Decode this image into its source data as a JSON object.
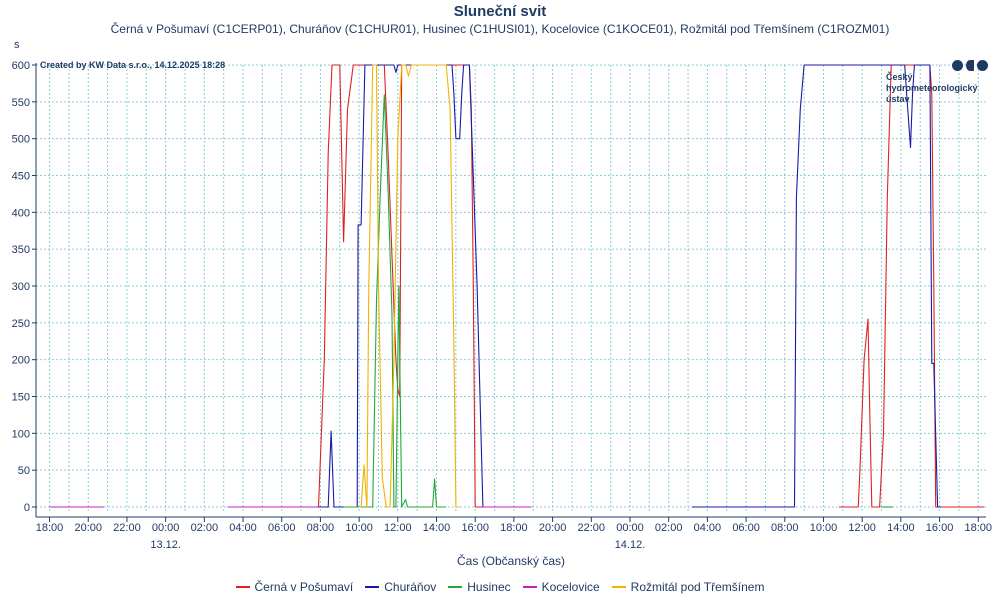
{
  "chart_data": {
    "type": "line",
    "title": "Sluneční svit",
    "subtitle": "Černá v Pošumaví (C1CERP01), Churáňov (C1CHUR01), Husinec (C1HUSI01), Kocelovice (C1KOCE01), Rožmitál pod Třemšínem (C1ROZM01)",
    "ylabel": "s",
    "xlabel": "Čas (Občanský čas)",
    "ylim": [
      0,
      600
    ],
    "y_ticks": [
      0,
      50,
      100,
      150,
      200,
      250,
      300,
      350,
      400,
      450,
      500,
      550,
      600
    ],
    "xlim": [
      17.3,
      66.4
    ],
    "x_ticks": [
      {
        "x": 18,
        "label": "18:00"
      },
      {
        "x": 20,
        "label": "20:00"
      },
      {
        "x": 22,
        "label": "22:00"
      },
      {
        "x": 24,
        "label": "00:00"
      },
      {
        "x": 26,
        "label": "02:00"
      },
      {
        "x": 28,
        "label": "04:00"
      },
      {
        "x": 30,
        "label": "06:00"
      },
      {
        "x": 32,
        "label": "08:00"
      },
      {
        "x": 34,
        "label": "10:00"
      },
      {
        "x": 36,
        "label": "12:00"
      },
      {
        "x": 38,
        "label": "14:00"
      },
      {
        "x": 40,
        "label": "16:00"
      },
      {
        "x": 42,
        "label": "18:00"
      },
      {
        "x": 44,
        "label": "20:00"
      },
      {
        "x": 46,
        "label": "22:00"
      },
      {
        "x": 48,
        "label": "00:00"
      },
      {
        "x": 50,
        "label": "02:00"
      },
      {
        "x": 52,
        "label": "04:00"
      },
      {
        "x": 54,
        "label": "06:00"
      },
      {
        "x": 56,
        "label": "08:00"
      },
      {
        "x": 58,
        "label": "10:00"
      },
      {
        "x": 60,
        "label": "12:00"
      },
      {
        "x": 62,
        "label": "14:00"
      },
      {
        "x": 64,
        "label": "16:00"
      },
      {
        "x": 66,
        "label": "18:00"
      }
    ],
    "date_labels": [
      {
        "x": 24,
        "label": "13.12."
      },
      {
        "x": 48,
        "label": "14.12."
      }
    ],
    "grid": true,
    "legend_position": "bottom",
    "series": [
      {
        "name": "Černá v Pošumaví",
        "color": "#dd2222",
        "segments": [
          [
            [
              18,
              0
            ],
            [
              20.8,
              0
            ]
          ],
          [
            [
              27.2,
              0
            ],
            [
              31.9,
              0
            ],
            [
              32.2,
              200
            ],
            [
              32.4,
              480
            ],
            [
              32.6,
              600
            ],
            [
              33.0,
              600
            ],
            [
              33.2,
              360
            ],
            [
              33.4,
              540
            ],
            [
              33.7,
              600
            ],
            [
              35.3,
              600
            ],
            [
              35.5,
              480
            ],
            [
              35.7,
              340
            ],
            [
              35.9,
              200
            ],
            [
              36.0,
              160
            ],
            [
              36.1,
              150
            ],
            [
              36.2,
              600
            ],
            [
              39.7,
              600
            ],
            [
              39.8,
              540
            ],
            [
              39.9,
              300
            ],
            [
              40.0,
              0
            ],
            [
              40.3,
              0
            ]
          ],
          [
            [
              40.3,
              0
            ],
            [
              42.9,
              0
            ]
          ],
          [
            [
              58.8,
              0
            ],
            [
              59.8,
              0
            ],
            [
              59.9,
              60
            ],
            [
              60.1,
              200
            ],
            [
              60.3,
              255
            ],
            [
              60.4,
              120
            ],
            [
              60.5,
              0
            ],
            [
              60.9,
              0
            ],
            [
              61.1,
              100
            ],
            [
              61.3,
              420
            ],
            [
              61.5,
              600
            ],
            [
              63.5,
              600
            ],
            [
              63.6,
              560
            ],
            [
              63.7,
              300
            ],
            [
              63.8,
              0
            ],
            [
              66.3,
              0
            ]
          ]
        ]
      },
      {
        "name": "Churáňov",
        "color": "#1a1aa8",
        "segments": [
          [
            [
              27.2,
              0
            ],
            [
              32.4,
              0
            ],
            [
              32.55,
              103
            ],
            [
              32.7,
              0
            ],
            [
              33.9,
              0
            ],
            [
              33.95,
              383
            ],
            [
              34.1,
              383
            ],
            [
              34.3,
              600
            ],
            [
              35.8,
              600
            ],
            [
              35.9,
              590
            ],
            [
              36.0,
              600
            ],
            [
              38.8,
              600
            ],
            [
              38.9,
              560
            ],
            [
              39.0,
              500
            ],
            [
              39.2,
              500
            ],
            [
              39.3,
              560
            ],
            [
              39.4,
              600
            ],
            [
              39.7,
              600
            ],
            [
              40.1,
              300
            ],
            [
              40.4,
              0
            ],
            [
              40.9,
              0
            ]
          ],
          [
            [
              51.2,
              0
            ],
            [
              56.5,
              0
            ],
            [
              56.6,
              420
            ],
            [
              56.8,
              540
            ],
            [
              57.0,
              600
            ],
            [
              62.2,
              600
            ],
            [
              62.3,
              560
            ],
            [
              62.5,
              488
            ],
            [
              62.6,
              560
            ],
            [
              62.7,
              600
            ],
            [
              63.5,
              600
            ],
            [
              63.6,
              195
            ],
            [
              63.7,
              195
            ],
            [
              63.9,
              0
            ],
            [
              64.1,
              0
            ]
          ]
        ]
      },
      {
        "name": "Husinec",
        "color": "#22a83a",
        "segments": [
          [
            [
              33.2,
              0
            ],
            [
              34.7,
              0
            ],
            [
              34.9,
              280
            ],
            [
              35.1,
              430
            ],
            [
              35.3,
              560
            ],
            [
              35.5,
              430
            ],
            [
              35.7,
              260
            ],
            [
              35.8,
              0
            ],
            [
              35.9,
              0
            ],
            [
              36.05,
              300
            ],
            [
              36.2,
              0
            ],
            [
              36.4,
              10
            ],
            [
              36.5,
              0
            ],
            [
              37.8,
              0
            ],
            [
              37.9,
              38
            ],
            [
              38.0,
              0
            ],
            [
              38.5,
              0
            ]
          ],
          [
            [
              61.0,
              0
            ],
            [
              61.6,
              0
            ]
          ]
        ]
      },
      {
        "name": "Kocelovice",
        "color": "#c020c0",
        "segments": [
          [
            [
              18,
              0
            ],
            [
              20.8,
              0
            ]
          ],
          [
            [
              27.2,
              0
            ],
            [
              31.9,
              0
            ]
          ],
          [
            [
              40.3,
              0
            ],
            [
              42.9,
              0
            ]
          ]
        ]
      },
      {
        "name": "Rožmitál pod Třemšínem",
        "color": "#f0b400",
        "segments": [
          [
            [
              34.0,
              0
            ],
            [
              34.1,
              0
            ],
            [
              34.25,
              57
            ],
            [
              34.4,
              0
            ],
            [
              34.5,
              300
            ],
            [
              34.7,
              600
            ],
            [
              34.9,
              600
            ],
            [
              35.0,
              300
            ],
            [
              35.2,
              40
            ],
            [
              35.4,
              0
            ],
            [
              35.6,
              0
            ],
            [
              35.8,
              200
            ],
            [
              36.0,
              500
            ],
            [
              36.2,
              600
            ],
            [
              36.4,
              600
            ],
            [
              36.55,
              585
            ],
            [
              36.7,
              600
            ],
            [
              38.5,
              600
            ],
            [
              38.7,
              540
            ],
            [
              38.9,
              220
            ],
            [
              39.0,
              0
            ],
            [
              39.2,
              0
            ]
          ]
        ]
      }
    ]
  },
  "credit": "Created by KW Data s.r.o., 14.12.2025 18:28",
  "logo": {
    "line1": "Český",
    "line2": "hydrometeorologický",
    "line3": "ústav"
  }
}
